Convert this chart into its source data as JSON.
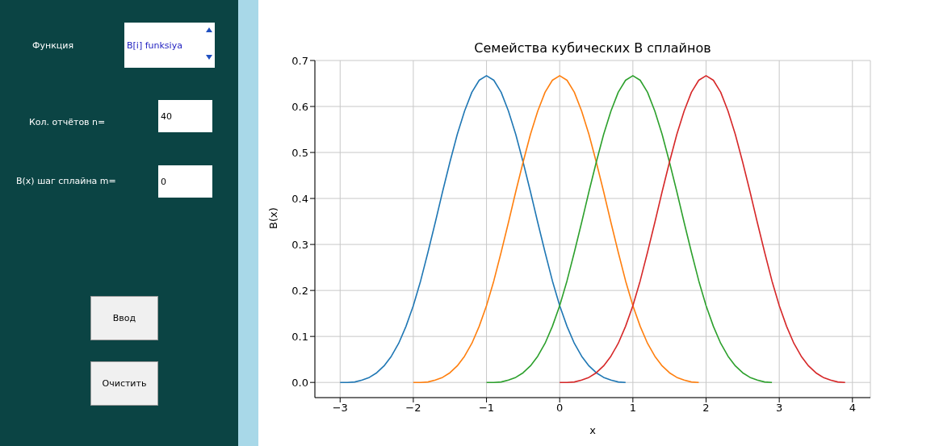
{
  "chart_data": [
    {
      "type": "other",
      "annotations": [
        "Функция",
        "B[i] funksiya",
        "Кол. отчётов n=",
        "40",
        "B(x) шаг сплайна m=",
        "0",
        "Ввод",
        "Очистить"
      ]
    },
    {
      "type": "line",
      "title": "Семейства кубических B сплайнов",
      "xlabel": "x",
      "ylabel": "B(x)",
      "grid": true,
      "marker": "none",
      "line_style": "solid",
      "xlim": [
        -3.345,
        4.245
      ],
      "xticks": [
        {
          "value": -3,
          "label": "−3"
        },
        {
          "value": -2,
          "label": "−2"
        },
        {
          "value": -1,
          "label": "−1"
        },
        0,
        1,
        2,
        3,
        4
      ],
      "ylim": [
        -0.033,
        0.7
      ],
      "yticks": [
        {
          "value": 0,
          "label": "0.0"
        },
        0.1,
        0.2,
        0.3,
        0.4,
        0.5,
        0.6,
        0.7
      ],
      "series": [
        {
          "color": "#1f77b4",
          "x": [
            -3,
            -2.9,
            -2.8,
            -2.7,
            -2.6,
            -2.5,
            -2.4,
            -2.3,
            -2.2,
            -2.1,
            -2,
            -1.9,
            -1.8,
            -1.7,
            -1.6,
            -1.5,
            -1.4,
            -1.3,
            -1.2,
            -1.1,
            -1,
            -0.9,
            -0.8,
            -0.7,
            -0.6,
            -0.5,
            -0.4,
            -0.3,
            -0.2,
            -0.1,
            0,
            0.1,
            0.2,
            0.3,
            0.4,
            0.5,
            0.6,
            0.7,
            0.8,
            0.9
          ],
          "values": [
            0,
            0,
            0.001,
            0.005,
            0.011,
            0.021,
            0.036,
            0.057,
            0.085,
            0.122,
            0.167,
            0.221,
            0.283,
            0.348,
            0.415,
            0.479,
            0.539,
            0.59,
            0.631,
            0.657,
            0.667,
            0.657,
            0.631,
            0.59,
            0.539,
            0.479,
            0.415,
            0.348,
            0.283,
            0.221,
            0.167,
            0.122,
            0.085,
            0.057,
            0.036,
            0.021,
            0.011,
            0.005,
            0.001,
            0
          ]
        },
        {
          "color": "#ff7f0e",
          "x": [
            -2,
            -1.9,
            -1.8,
            -1.7,
            -1.6,
            -1.5,
            -1.4,
            -1.3,
            -1.2,
            -1.1,
            -1,
            -0.9,
            -0.8,
            -0.7,
            -0.6,
            -0.5,
            -0.4,
            -0.3,
            -0.2,
            -0.1,
            0,
            0.1,
            0.2,
            0.3,
            0.4,
            0.5,
            0.6,
            0.7,
            0.8,
            0.9,
            1,
            1.1,
            1.2,
            1.3,
            1.4,
            1.5,
            1.6,
            1.7,
            1.8,
            1.9
          ],
          "values": [
            0,
            0,
            0.001,
            0.005,
            0.011,
            0.021,
            0.036,
            0.057,
            0.085,
            0.122,
            0.167,
            0.221,
            0.283,
            0.348,
            0.415,
            0.479,
            0.539,
            0.59,
            0.631,
            0.657,
            0.667,
            0.657,
            0.631,
            0.59,
            0.539,
            0.479,
            0.415,
            0.348,
            0.283,
            0.221,
            0.167,
            0.122,
            0.085,
            0.057,
            0.036,
            0.021,
            0.011,
            0.005,
            0.001,
            0
          ]
        },
        {
          "color": "#2ca02c",
          "x": [
            -1,
            -0.9,
            -0.8,
            -0.7,
            -0.6,
            -0.5,
            -0.4,
            -0.3,
            -0.2,
            -0.1,
            0,
            0.1,
            0.2,
            0.3,
            0.4,
            0.5,
            0.6,
            0.7,
            0.8,
            0.9,
            1,
            1.1,
            1.2,
            1.3,
            1.4,
            1.5,
            1.6,
            1.7,
            1.8,
            1.9,
            2,
            2.1,
            2.2,
            2.3,
            2.4,
            2.5,
            2.6,
            2.7,
            2.8,
            2.9
          ],
          "values": [
            0,
            0,
            0.001,
            0.005,
            0.011,
            0.021,
            0.036,
            0.057,
            0.085,
            0.122,
            0.167,
            0.221,
            0.283,
            0.348,
            0.415,
            0.479,
            0.539,
            0.59,
            0.631,
            0.657,
            0.667,
            0.657,
            0.631,
            0.59,
            0.539,
            0.479,
            0.415,
            0.348,
            0.283,
            0.221,
            0.167,
            0.122,
            0.085,
            0.057,
            0.036,
            0.021,
            0.011,
            0.005,
            0.001,
            0
          ]
        },
        {
          "color": "#d62728",
          "x": [
            0,
            0.1,
            0.2,
            0.3,
            0.4,
            0.5,
            0.6,
            0.7,
            0.8,
            0.9,
            1,
            1.1,
            1.2,
            1.3,
            1.4,
            1.5,
            1.6,
            1.7,
            1.8,
            1.9,
            2,
            2.1,
            2.2,
            2.3,
            2.4,
            2.5,
            2.6,
            2.7,
            2.8,
            2.9,
            3,
            3.1,
            3.2,
            3.3,
            3.4,
            3.5,
            3.6,
            3.7,
            3.8,
            3.9
          ],
          "values": [
            0,
            0,
            0.001,
            0.005,
            0.011,
            0.021,
            0.036,
            0.057,
            0.085,
            0.122,
            0.167,
            0.221,
            0.283,
            0.348,
            0.415,
            0.479,
            0.539,
            0.59,
            0.631,
            0.657,
            0.667,
            0.657,
            0.631,
            0.59,
            0.539,
            0.479,
            0.415,
            0.348,
            0.283,
            0.221,
            0.167,
            0.122,
            0.085,
            0.057,
            0.036,
            0.021,
            0.011,
            0.005,
            0.001,
            0
          ]
        }
      ]
    }
  ]
}
